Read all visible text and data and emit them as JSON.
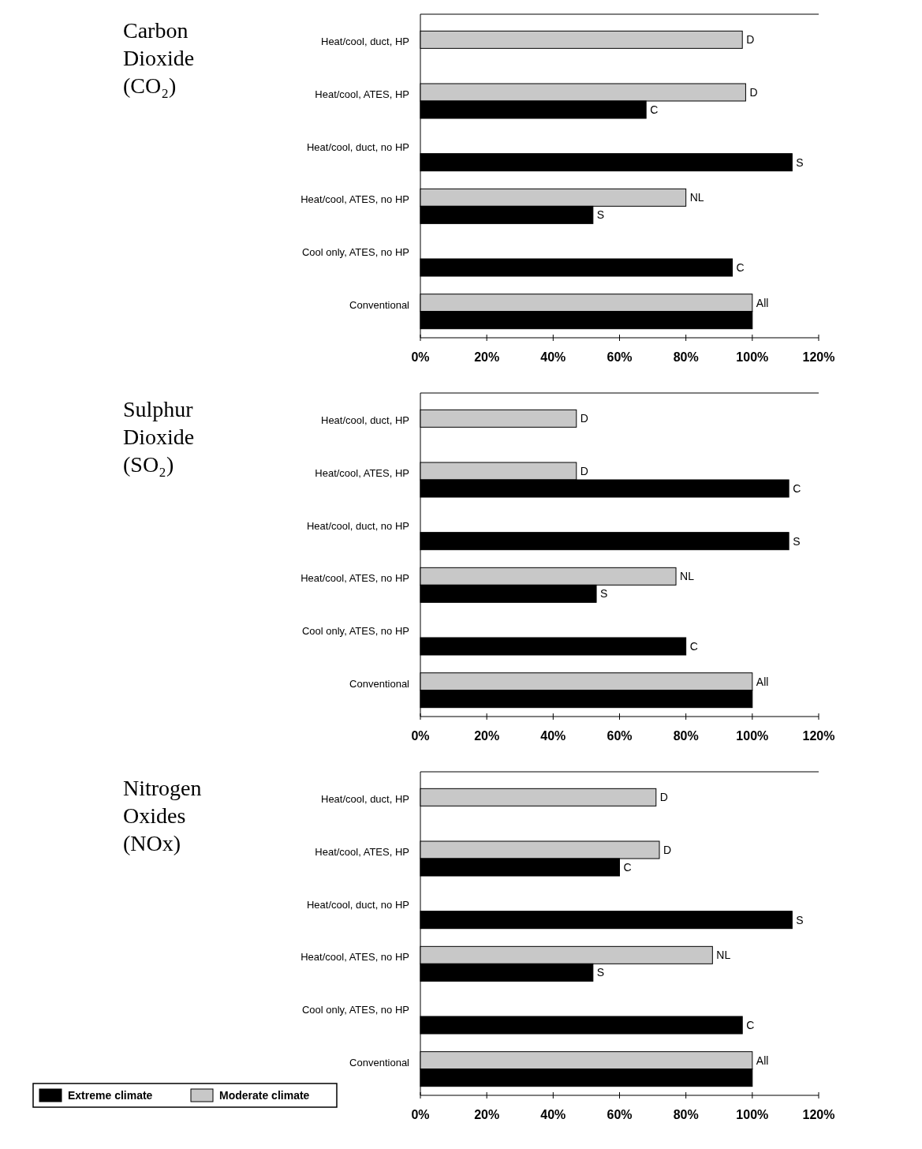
{
  "chart_data": [
    {
      "type": "bar",
      "orientation": "horizontal",
      "title": "Carbon Dioxide (CO₂)",
      "categories": [
        "Heat/cool, duct, HP",
        "Heat/cool, ATES, HP",
        "Heat/cool, duct, no HP",
        "Heat/cool, ATES, no HP",
        "Cool only, ATES, no HP",
        "Conventional"
      ],
      "series": [
        {
          "color": "#c8c8c8",
          "values": [
            97,
            98,
            null,
            80,
            null,
            100
          ],
          "value_labels": [
            "D",
            "D",
            null,
            "NL",
            null,
            "All"
          ]
        },
        {
          "color": "#000000",
          "values": [
            null,
            68,
            112,
            52,
            94,
            100
          ],
          "value_labels": [
            null,
            "C",
            "S",
            "S",
            "C",
            null
          ]
        }
      ],
      "xlim": [
        0,
        120
      ],
      "xticks": [
        {
          "value": 0,
          "label": "0%"
        },
        {
          "value": 20,
          "label": "20%"
        },
        {
          "value": 40,
          "label": "40%"
        },
        {
          "value": 60,
          "label": "60%"
        },
        {
          "value": 80,
          "label": "80%"
        },
        {
          "value": 100,
          "label": "100%"
        },
        {
          "value": 120,
          "label": "120%"
        }
      ]
    },
    {
      "type": "bar",
      "orientation": "horizontal",
      "title": "Sulphur Dioxide (SO₂)",
      "categories": [
        "Heat/cool, duct, HP",
        "Heat/cool, ATES, HP",
        "Heat/cool, duct, no HP",
        "Heat/cool, ATES, no HP",
        "Cool only, ATES, no HP",
        "Conventional"
      ],
      "series": [
        {
          "color": "#c8c8c8",
          "values": [
            47,
            47,
            null,
            77,
            null,
            100
          ],
          "value_labels": [
            "D",
            "D",
            null,
            "NL",
            null,
            "All"
          ]
        },
        {
          "color": "#000000",
          "values": [
            null,
            111,
            111,
            53,
            80,
            100
          ],
          "value_labels": [
            null,
            "C",
            "S",
            "S",
            "C",
            null
          ]
        }
      ],
      "xlim": [
        0,
        120
      ],
      "xticks": [
        {
          "value": 0,
          "label": "0%"
        },
        {
          "value": 20,
          "label": "20%"
        },
        {
          "value": 40,
          "label": "40%"
        },
        {
          "value": 60,
          "label": "60%"
        },
        {
          "value": 80,
          "label": "80%"
        },
        {
          "value": 100,
          "label": "100%"
        },
        {
          "value": 120,
          "label": "120%"
        }
      ]
    },
    {
      "type": "bar",
      "orientation": "horizontal",
      "title": "Nitrogen Oxides (NOx)",
      "categories": [
        "Heat/cool, duct, HP",
        "Heat/cool, ATES, HP",
        "Heat/cool, duct, no HP",
        "Heat/cool, ATES, no HP",
        "Cool only, ATES, no HP",
        "Conventional"
      ],
      "series": [
        {
          "name": "Moderate climate",
          "color": "#c8c8c8",
          "values": [
            71,
            72,
            null,
            88,
            null,
            100
          ],
          "value_labels": [
            "D",
            "D",
            null,
            "NL",
            null,
            "All"
          ]
        },
        {
          "name": "Extreme climate",
          "color": "#000000",
          "values": [
            null,
            60,
            112,
            52,
            97,
            100
          ],
          "value_labels": [
            null,
            "C",
            "S",
            "S",
            "C",
            null
          ]
        }
      ],
      "xlim": [
        0,
        120
      ],
      "xticks": [
        {
          "value": 0,
          "label": "0%"
        },
        {
          "value": 20,
          "label": "20%"
        },
        {
          "value": 40,
          "label": "40%"
        },
        {
          "value": 60,
          "label": "60%"
        },
        {
          "value": 80,
          "label": "80%"
        },
        {
          "value": 100,
          "label": "100%"
        },
        {
          "value": 120,
          "label": "120%"
        }
      ],
      "legend": "bottom left"
    }
  ]
}
